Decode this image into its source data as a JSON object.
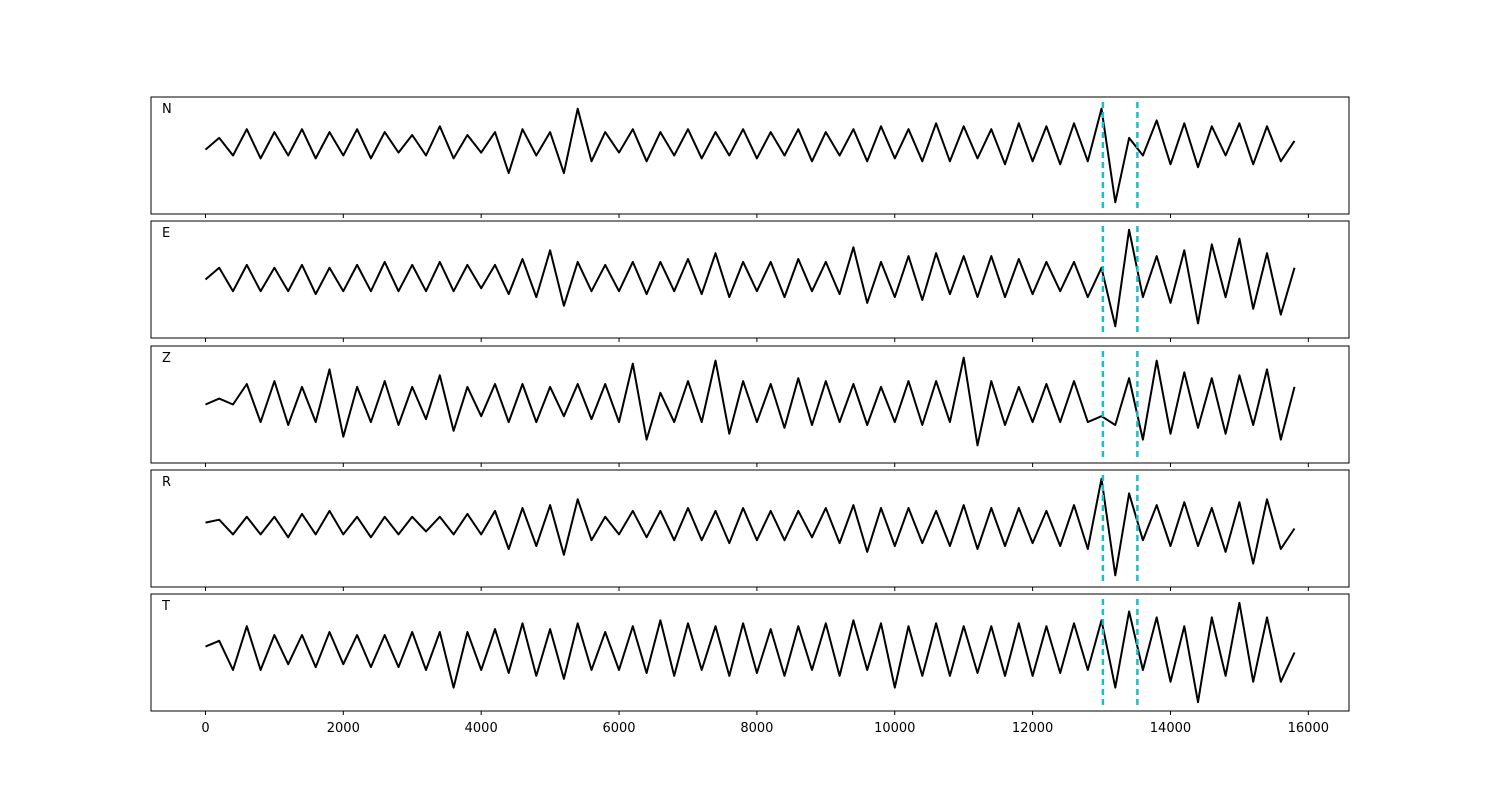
{
  "chart_data": [
    {
      "type": "line",
      "label": "N",
      "color": "#000000",
      "xlim": [
        -790,
        16590
      ],
      "ylim": [
        -1,
        1
      ],
      "vlines": [
        13020,
        13520
      ],
      "vline_color": "#17becf",
      "x": [
        0,
        200,
        400,
        600,
        800,
        1000,
        1200,
        1400,
        1600,
        1800,
        2000,
        2200,
        2400,
        2600,
        2800,
        3000,
        3200,
        3400,
        3600,
        3800,
        4000,
        4200,
        4400,
        4600,
        4800,
        5000,
        5200,
        5400,
        5600,
        5800,
        6000,
        6200,
        6400,
        6600,
        6800,
        7000,
        7200,
        7400,
        7600,
        7800,
        8000,
        8200,
        8400,
        8600,
        8800,
        9000,
        9200,
        9400,
        9600,
        9800,
        10000,
        10200,
        10400,
        10600,
        10800,
        11000,
        11200,
        11400,
        11600,
        11800,
        12000,
        12200,
        12400,
        12600,
        12800,
        13000,
        13200,
        13400,
        13600,
        13800,
        14000,
        14200,
        14400,
        14600,
        14800,
        15000,
        15200,
        15400,
        15600,
        15800
      ],
      "values": [
        0.1,
        0.3,
        0.0,
        0.45,
        -0.05,
        0.4,
        0.0,
        0.45,
        -0.05,
        0.4,
        0.0,
        0.45,
        -0.05,
        0.4,
        0.05,
        0.35,
        0.0,
        0.5,
        -0.05,
        0.35,
        0.05,
        0.4,
        -0.3,
        0.45,
        0.0,
        0.4,
        -0.3,
        0.8,
        -0.1,
        0.4,
        0.05,
        0.45,
        -0.1,
        0.4,
        0.0,
        0.45,
        -0.05,
        0.4,
        0.0,
        0.45,
        -0.05,
        0.4,
        0.0,
        0.45,
        -0.1,
        0.4,
        0.0,
        0.45,
        -0.1,
        0.5,
        -0.05,
        0.45,
        -0.1,
        0.55,
        -0.1,
        0.5,
        -0.05,
        0.45,
        -0.15,
        0.55,
        -0.1,
        0.5,
        -0.15,
        0.55,
        -0.1,
        0.8,
        -0.8,
        0.3,
        0.0,
        0.6,
        -0.15,
        0.55,
        -0.2,
        0.5,
        0.0,
        0.55,
        -0.15,
        0.5,
        -0.1,
        0.25
      ]
    },
    {
      "type": "line",
      "label": "E",
      "color": "#000000",
      "xlim": [
        -790,
        16590
      ],
      "ylim": [
        -1,
        1
      ],
      "vlines": [
        13020,
        13520
      ],
      "vline_color": "#17becf",
      "x": [
        0,
        200,
        400,
        600,
        800,
        1000,
        1200,
        1400,
        1600,
        1800,
        2000,
        2200,
        2400,
        2600,
        2800,
        3000,
        3200,
        3400,
        3600,
        3800,
        4000,
        4200,
        4400,
        4600,
        4800,
        5000,
        5200,
        5400,
        5600,
        5800,
        6000,
        6200,
        6400,
        6600,
        6800,
        7000,
        7200,
        7400,
        7600,
        7800,
        8000,
        8200,
        8400,
        8600,
        8800,
        9000,
        9200,
        9400,
        9600,
        9800,
        10000,
        10200,
        10400,
        10600,
        10800,
        11000,
        11200,
        11400,
        11600,
        11800,
        12000,
        12200,
        12400,
        12600,
        12800,
        13000,
        13200,
        13400,
        13600,
        13800,
        14000,
        14200,
        14400,
        14600,
        14800,
        15000,
        15200,
        15400,
        15600,
        15800
      ],
      "values": [
        0.0,
        0.2,
        -0.2,
        0.25,
        -0.2,
        0.2,
        -0.2,
        0.25,
        -0.25,
        0.2,
        -0.2,
        0.25,
        -0.2,
        0.3,
        -0.2,
        0.25,
        -0.2,
        0.3,
        -0.2,
        0.25,
        -0.15,
        0.25,
        -0.25,
        0.35,
        -0.3,
        0.5,
        -0.45,
        0.3,
        -0.2,
        0.25,
        -0.2,
        0.3,
        -0.25,
        0.3,
        -0.2,
        0.35,
        -0.25,
        0.45,
        -0.3,
        0.3,
        -0.2,
        0.3,
        -0.3,
        0.35,
        -0.2,
        0.3,
        -0.25,
        0.55,
        -0.4,
        0.3,
        -0.3,
        0.4,
        -0.35,
        0.45,
        -0.25,
        0.4,
        -0.3,
        0.4,
        -0.3,
        0.35,
        -0.25,
        0.3,
        -0.2,
        0.3,
        -0.3,
        0.2,
        -0.8,
        0.85,
        -0.3,
        0.4,
        -0.4,
        0.5,
        -0.75,
        0.6,
        -0.3,
        0.7,
        -0.5,
        0.45,
        -0.6,
        0.2
      ]
    },
    {
      "type": "line",
      "label": "Z",
      "color": "#000000",
      "xlim": [
        -790,
        16590
      ],
      "ylim": [
        -1,
        1
      ],
      "vlines": [
        13020,
        13520
      ],
      "vline_color": "#17becf",
      "x": [
        0,
        200,
        400,
        600,
        800,
        1000,
        1200,
        1400,
        1600,
        1800,
        2000,
        2200,
        2400,
        2600,
        2800,
        3000,
        3200,
        3400,
        3600,
        3800,
        4000,
        4200,
        4400,
        4600,
        4800,
        5000,
        5200,
        5400,
        5600,
        5800,
        6000,
        6200,
        6400,
        6600,
        6800,
        7000,
        7200,
        7400,
        7600,
        7800,
        8000,
        8200,
        8400,
        8600,
        8800,
        9000,
        9200,
        9400,
        9600,
        9800,
        10000,
        10200,
        10400,
        10600,
        10800,
        11000,
        11200,
        11400,
        11600,
        11800,
        12000,
        12200,
        12400,
        12600,
        12800,
        13000,
        13200,
        13400,
        13600,
        13800,
        14000,
        14200,
        14400,
        14600,
        14800,
        15000,
        15200,
        15400,
        15600,
        15800
      ],
      "values": [
        0.0,
        0.1,
        0.0,
        0.35,
        -0.3,
        0.4,
        -0.35,
        0.3,
        -0.3,
        0.6,
        -0.55,
        0.3,
        -0.3,
        0.4,
        -0.35,
        0.3,
        -0.25,
        0.5,
        -0.45,
        0.3,
        -0.2,
        0.35,
        -0.3,
        0.35,
        -0.3,
        0.3,
        -0.2,
        0.35,
        -0.25,
        0.35,
        -0.3,
        0.7,
        -0.6,
        0.2,
        -0.3,
        0.4,
        -0.3,
        0.75,
        -0.5,
        0.4,
        -0.3,
        0.35,
        -0.4,
        0.45,
        -0.35,
        0.4,
        -0.3,
        0.35,
        -0.35,
        0.3,
        -0.3,
        0.4,
        -0.35,
        0.4,
        -0.3,
        0.8,
        -0.7,
        0.4,
        -0.35,
        0.3,
        -0.3,
        0.35,
        -0.3,
        0.4,
        -0.3,
        -0.2,
        -0.35,
        0.45,
        -0.6,
        0.75,
        -0.5,
        0.55,
        -0.4,
        0.45,
        -0.5,
        0.5,
        -0.35,
        0.6,
        -0.6,
        0.3
      ]
    },
    {
      "type": "line",
      "label": "R",
      "color": "#000000",
      "xlim": [
        -790,
        16590
      ],
      "ylim": [
        -1,
        1
      ],
      "vlines": [
        13020,
        13520
      ],
      "vline_color": "#17becf",
      "x": [
        0,
        200,
        400,
        600,
        800,
        1000,
        1200,
        1400,
        1600,
        1800,
        2000,
        2200,
        2400,
        2600,
        2800,
        3000,
        3200,
        3400,
        3600,
        3800,
        4000,
        4200,
        4400,
        4600,
        4800,
        5000,
        5200,
        5400,
        5600,
        5800,
        6000,
        6200,
        6400,
        6600,
        6800,
        7000,
        7200,
        7400,
        7600,
        7800,
        8000,
        8200,
        8400,
        8600,
        8800,
        9000,
        9200,
        9400,
        9600,
        9800,
        10000,
        10200,
        10400,
        10600,
        10800,
        11000,
        11200,
        11400,
        11600,
        11800,
        12000,
        12200,
        12400,
        12600,
        12800,
        13000,
        13200,
        13400,
        13600,
        13800,
        14000,
        14200,
        14400,
        14600,
        14800,
        15000,
        15200,
        15400,
        15600,
        15800
      ],
      "values": [
        0.1,
        0.15,
        -0.1,
        0.2,
        -0.1,
        0.2,
        -0.15,
        0.25,
        -0.1,
        0.3,
        -0.1,
        0.2,
        -0.15,
        0.2,
        -0.1,
        0.2,
        -0.05,
        0.2,
        -0.1,
        0.25,
        -0.1,
        0.3,
        -0.35,
        0.35,
        -0.3,
        0.4,
        -0.45,
        0.5,
        -0.2,
        0.2,
        -0.1,
        0.3,
        -0.15,
        0.3,
        -0.2,
        0.35,
        -0.2,
        0.3,
        -0.25,
        0.35,
        -0.2,
        0.3,
        -0.2,
        0.3,
        -0.15,
        0.35,
        -0.25,
        0.4,
        -0.4,
        0.35,
        -0.3,
        0.35,
        -0.25,
        0.3,
        -0.3,
        0.4,
        -0.35,
        0.35,
        -0.3,
        0.35,
        -0.25,
        0.3,
        -0.3,
        0.4,
        -0.35,
        0.85,
        -0.8,
        0.6,
        -0.2,
        0.4,
        -0.3,
        0.45,
        -0.3,
        0.35,
        -0.4,
        0.45,
        -0.6,
        0.5,
        -0.35,
        0.0
      ]
    },
    {
      "type": "line",
      "label": "T",
      "color": "#000000",
      "xlim": [
        -790,
        16590
      ],
      "ylim": [
        -1,
        1
      ],
      "vlines": [
        13020,
        13520
      ],
      "vline_color": "#17becf",
      "xticks": [
        0,
        2000,
        4000,
        6000,
        8000,
        10000,
        12000,
        14000,
        16000
      ],
      "x": [
        0,
        200,
        400,
        600,
        800,
        1000,
        1200,
        1400,
        1600,
        1800,
        2000,
        2200,
        2400,
        2600,
        2800,
        3000,
        3200,
        3400,
        3600,
        3800,
        4000,
        4200,
        4400,
        4600,
        4800,
        5000,
        5200,
        5400,
        5600,
        5800,
        6000,
        6200,
        6400,
        6600,
        6800,
        7000,
        7200,
        7400,
        7600,
        7800,
        8000,
        8200,
        8400,
        8600,
        8800,
        9000,
        9200,
        9400,
        9600,
        9800,
        10000,
        10200,
        10400,
        10600,
        10800,
        11000,
        11200,
        11400,
        11600,
        11800,
        12000,
        12200,
        12400,
        12600,
        12800,
        13000,
        13200,
        13400,
        13600,
        13800,
        14000,
        14200,
        14400,
        14600,
        14800,
        15000,
        15200,
        15400,
        15600,
        15800
      ],
      "values": [
        0.1,
        0.2,
        -0.3,
        0.45,
        -0.3,
        0.3,
        -0.2,
        0.3,
        -0.25,
        0.35,
        -0.2,
        0.3,
        -0.25,
        0.3,
        -0.25,
        0.35,
        -0.3,
        0.35,
        -0.6,
        0.35,
        -0.3,
        0.4,
        -0.35,
        0.5,
        -0.4,
        0.4,
        -0.45,
        0.5,
        -0.3,
        0.35,
        -0.3,
        0.45,
        -0.35,
        0.55,
        -0.4,
        0.5,
        -0.3,
        0.45,
        -0.4,
        0.5,
        -0.35,
        0.4,
        -0.4,
        0.45,
        -0.3,
        0.5,
        -0.4,
        0.55,
        -0.3,
        0.5,
        -0.6,
        0.45,
        -0.4,
        0.5,
        -0.4,
        0.45,
        -0.35,
        0.45,
        -0.4,
        0.5,
        -0.4,
        0.45,
        -0.35,
        0.5,
        -0.3,
        0.55,
        -0.6,
        0.7,
        -0.3,
        0.6,
        -0.5,
        0.45,
        -0.85,
        0.6,
        -0.4,
        0.85,
        -0.5,
        0.6,
        -0.5,
        0.0
      ]
    }
  ]
}
